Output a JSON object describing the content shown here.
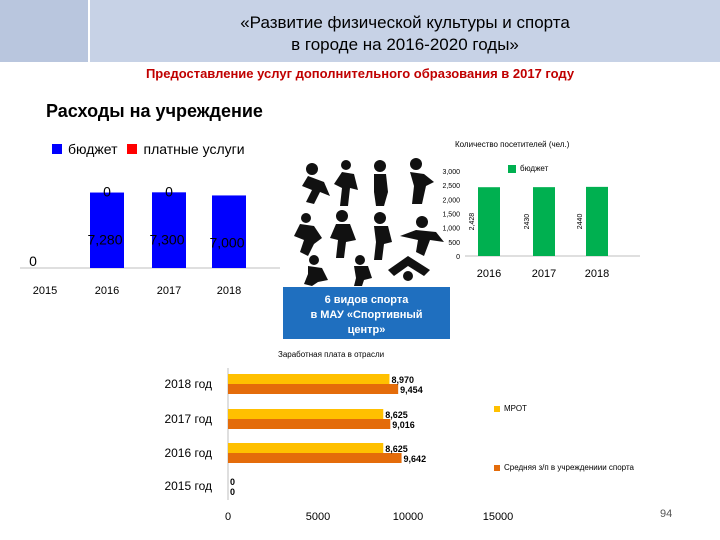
{
  "header": {
    "title_line1": "«Развитие физической культуры и спорта",
    "title_line2": "в городе   на 2016-2020 годы»"
  },
  "subtitle": "Предоставление услуг дополнительного образования в 2017 году",
  "section_title": "Расходы на учреждение",
  "callout": {
    "line1": "6 видов спорта",
    "line2": "в МАУ «Спортивный",
    "line3": "центр»"
  },
  "page_number": "94",
  "colors": {
    "budget": "#0000ff",
    "paid": "#ff0000",
    "mrot": "#ffc000",
    "avg": "#e46c0a",
    "visitors": "#00b050",
    "header": "#c7d2e6",
    "callout": "#1f6fbf"
  },
  "sports_image": "sports-silhouettes-icon",
  "chart_data": [
    {
      "type": "bar",
      "categories": [
        "2015",
        "2016",
        "2017",
        "2018"
      ],
      "series": [
        {
          "name": "бюджет",
          "values": [
            0,
            7280,
            7300,
            7000
          ],
          "labels": [
            "0",
            "7,280",
            "7,300",
            "7,000"
          ]
        },
        {
          "name": "платные услуги",
          "values": [
            null,
            0,
            0,
            null
          ],
          "labels": [
            "",
            "0",
            "0",
            ""
          ]
        }
      ],
      "ylim": [
        0,
        8200
      ]
    },
    {
      "type": "bar",
      "title": "Количество посетителей (чел.)",
      "categories": [
        "2016",
        "2017",
        "2018"
      ],
      "series": [
        {
          "name": "бюджет",
          "values": [
            2428,
            2430,
            2440
          ],
          "labels": [
            "2,428",
            "2430",
            "2440"
          ]
        }
      ],
      "yticks": [
        "0",
        "500",
        "1,000",
        "1,500",
        "2,000",
        "2,500",
        "3,000"
      ],
      "ylim": [
        0,
        3000
      ]
    },
    {
      "type": "bar",
      "orientation": "horizontal",
      "title": "Заработная плата в отрасли",
      "categories": [
        "2018 год",
        "2017 год",
        "2016 год",
        "2015 год"
      ],
      "series": [
        {
          "name": "МРОТ",
          "values": [
            8970,
            8625,
            8625,
            0
          ],
          "labels": [
            "8,970",
            "8,625",
            "8,625",
            "0"
          ]
        },
        {
          "name": "Средняя з/п в учреждениии спорта",
          "values": [
            9454,
            9016,
            9642,
            0
          ],
          "labels": [
            "9,454",
            "9,016",
            "9,642",
            "0"
          ]
        }
      ],
      "xticks": [
        "0",
        "5000",
        "10000",
        "15000"
      ],
      "xlim": [
        0,
        15000
      ]
    }
  ]
}
